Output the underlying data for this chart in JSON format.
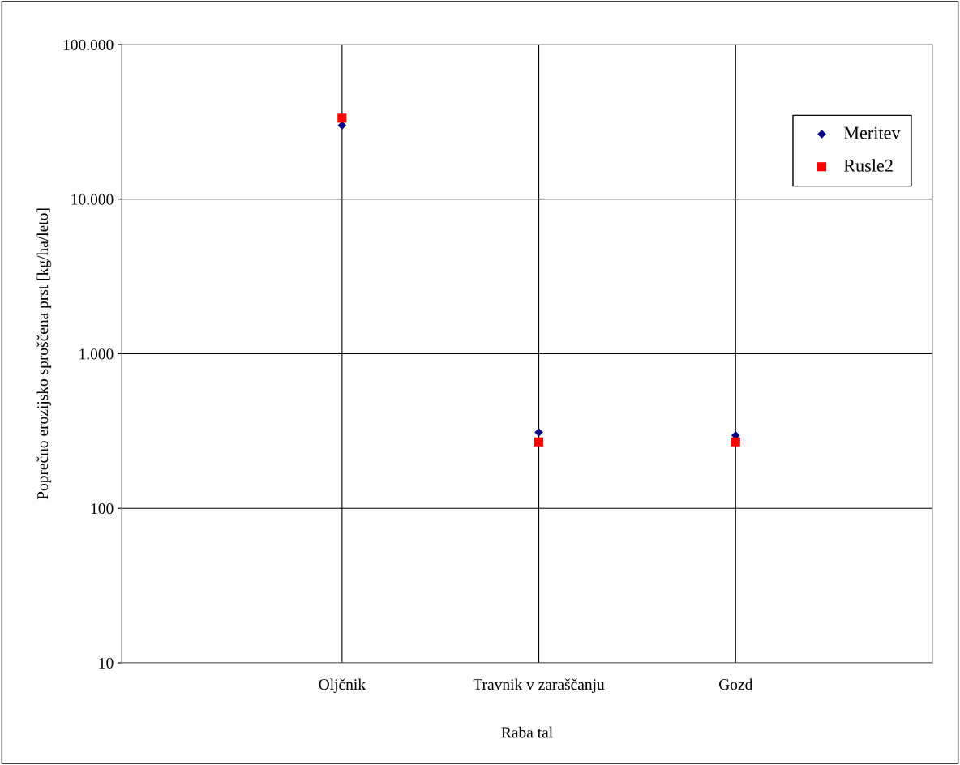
{
  "chart_data": {
    "type": "scatter",
    "xlabel": "Raba tal",
    "ylabel": "Poprečno erozijsko sproščena prst [kg/ha/leto]",
    "categories": [
      "Oljčnik",
      "Travnik v zaraščanju",
      "Gozd"
    ],
    "series": [
      {
        "name": "Meritev",
        "color": "#000080",
        "marker": "diamond",
        "values": [
          30000,
          310,
          296
        ]
      },
      {
        "name": "Rusle2",
        "color": "#ff0000",
        "marker": "square",
        "values": [
          33400,
          269,
          269
        ]
      }
    ],
    "log": true,
    "ylim": [
      10,
      100000
    ],
    "yticks": [
      10,
      100,
      {
        "value": 1000,
        "label": "1.000"
      },
      {
        "value": 10000,
        "label": "10.000"
      },
      {
        "value": 100000,
        "label": "100.000"
      }
    ],
    "grid": true,
    "legend": "top right"
  }
}
